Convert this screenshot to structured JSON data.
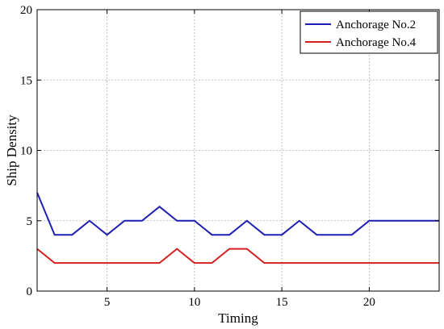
{
  "chart_data": {
    "type": "line",
    "xlabel": "Timing",
    "ylabel": "Ship Density",
    "xlim": [
      1,
      24
    ],
    "ylim": [
      0,
      20
    ],
    "xticks": [
      5,
      10,
      15,
      20
    ],
    "yticks": [
      0,
      5,
      10,
      15,
      20
    ],
    "grid": true,
    "legend_position": "top-right",
    "x": [
      1,
      2,
      3,
      4,
      5,
      6,
      7,
      8,
      9,
      10,
      11,
      12,
      13,
      14,
      15,
      16,
      17,
      18,
      19,
      20,
      21,
      22,
      23,
      24
    ],
    "series": [
      {
        "name": "Anchorage No.2",
        "color": "#1f1fb4",
        "values": [
          7,
          4,
          4,
          5,
          4,
          5,
          5,
          6,
          5,
          5,
          4,
          4,
          5,
          4,
          4,
          5,
          4,
          4,
          4,
          5,
          5,
          5,
          5,
          5
        ]
      },
      {
        "name": "Anchorage No.4",
        "color": "#d42020",
        "values": [
          3,
          2,
          2,
          2,
          2,
          2,
          2,
          2,
          3,
          2,
          2,
          3,
          3,
          2,
          2,
          2,
          2,
          2,
          2,
          2,
          2,
          2,
          2,
          2
        ]
      }
    ]
  }
}
